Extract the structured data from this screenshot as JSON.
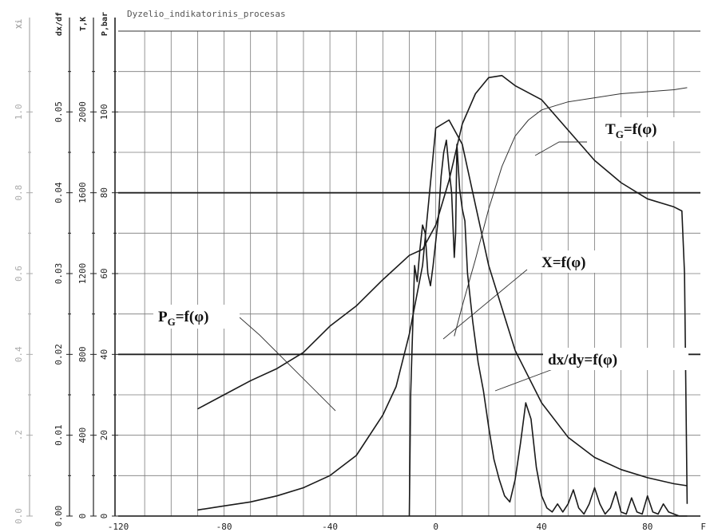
{
  "chart_data": {
    "type": "line",
    "title": "Dyzelio_indikatorinis_procesas",
    "x_axis": {
      "min": -120,
      "max": 100,
      "ticks": [
        -120,
        -80,
        -40,
        0,
        40,
        80
      ],
      "tick_labels": [
        "-120",
        "-80",
        "-40",
        "0",
        "40",
        "80"
      ],
      "end_label": "F"
    },
    "y_axes": [
      {
        "label": "Xi",
        "min": 0,
        "max": 1.2,
        "ticks": [
          0,
          0.2,
          0.4,
          0.6,
          0.8,
          1.0
        ],
        "tick_labels": [
          "0.0",
          ".2",
          "0.4",
          "0.6",
          "0.8",
          "1.0"
        ],
        "faded": true
      },
      {
        "label": "dx/df",
        "min": 0,
        "max": 0.06,
        "ticks": [
          0,
          0.01,
          0.02,
          0.03,
          0.04,
          0.05
        ],
        "tick_labels": [
          "0.00",
          "0.01",
          "0.02",
          "0.03",
          "0.04",
          "0.05"
        ]
      },
      {
        "label": "T,K",
        "min": 0,
        "max": 2400,
        "ticks": [
          0,
          400,
          800,
          1200,
          1600,
          2000
        ],
        "tick_labels": [
          "0",
          "400",
          "800",
          "1200",
          "1600",
          "2000"
        ]
      },
      {
        "label": "P,bar",
        "min": 0,
        "max": 120,
        "ticks": [
          0,
          20,
          40,
          60,
          80,
          100
        ],
        "tick_labels": [
          "0",
          "20",
          "40",
          "60",
          "80",
          "100"
        ]
      }
    ],
    "grid": true,
    "series": [
      {
        "name": "P_G",
        "axis": "P,bar",
        "x": [
          -90,
          -80,
          -70,
          -60,
          -50,
          -40,
          -30,
          -20,
          -15,
          -10,
          -5,
          0,
          5,
          10,
          15,
          20,
          30,
          40,
          50,
          60,
          70,
          80,
          90,
          95
        ],
        "y": [
          1.5,
          2.5,
          3.5,
          5,
          7,
          10,
          15,
          25,
          32,
          45,
          62,
          96,
          98,
          92,
          77,
          62,
          41,
          28,
          19.5,
          14.5,
          11.5,
          9.5,
          8,
          7.5
        ]
      },
      {
        "name": "T_G",
        "axis": "P,bar",
        "x": [
          -90,
          -80,
          -70,
          -60,
          -50,
          -40,
          -30,
          -20,
          -10,
          -5,
          0,
          5,
          10,
          15,
          20,
          25,
          30,
          40,
          50,
          60,
          70,
          80,
          90,
          93,
          94,
          95
        ],
        "y": [
          26.5,
          30,
          33.5,
          36.5,
          40.5,
          47,
          52,
          58.5,
          64.5,
          66,
          72,
          83,
          97,
          104.5,
          108.5,
          109,
          106.5,
          103,
          95.5,
          88,
          82.5,
          78.5,
          76.5,
          75.5,
          60,
          3
        ]
      },
      {
        "name": "X",
        "axis": "P,bar",
        "x": [
          7,
          10,
          15,
          20,
          25,
          30,
          35,
          40,
          45,
          50,
          60,
          70,
          80,
          90,
          95
        ],
        "y": [
          44.5,
          52,
          63.5,
          76,
          86.5,
          94,
          98,
          100.5,
          101.5,
          102.5,
          103.5,
          104.5,
          105,
          105.5,
          106
        ]
      },
      {
        "name": "dx/dy",
        "axis": "P,bar",
        "x": [
          -10,
          -9.5,
          -8,
          -7,
          -6,
          -5,
          -4,
          -3,
          -2,
          -1,
          0,
          1,
          2,
          3,
          4,
          5,
          6,
          7,
          7.5,
          8,
          9,
          10,
          11,
          12,
          14,
          16,
          18,
          20,
          22,
          24,
          26,
          28,
          30,
          32,
          34,
          36,
          38,
          40,
          42,
          44,
          46,
          48,
          50,
          52,
          54,
          56,
          58,
          60,
          62,
          64,
          66,
          68,
          70,
          72,
          74,
          76,
          78,
          80,
          82,
          84,
          86,
          88,
          90,
          92,
          94,
          95
        ],
        "y": [
          0,
          30,
          62,
          58,
          66,
          72,
          70,
          60,
          57,
          62,
          68,
          74,
          84,
          90,
          93,
          86,
          80,
          64,
          70,
          92,
          81,
          76,
          73,
          60,
          48,
          38,
          31,
          22,
          14,
          9,
          5,
          3.5,
          9,
          18,
          28,
          24,
          12,
          5,
          2,
          1,
          3,
          1,
          3,
          6.5,
          2,
          0.5,
          3,
          7,
          3,
          0.5,
          2,
          6,
          1,
          0.5,
          4.5,
          1,
          0.5,
          5,
          1,
          0.5,
          3,
          1,
          0.5,
          0,
          0,
          0
        ]
      }
    ],
    "annotations": [
      {
        "text": "T",
        "sub": "G",
        "suffix": "=f(φ)"
      },
      {
        "text": "X",
        "sub": "",
        "suffix": "=f(φ)"
      },
      {
        "text": "P",
        "sub": "G",
        "suffix": "=f(φ)"
      },
      {
        "text": "dx/dy",
        "sub": "",
        "suffix": "=f(φ)"
      }
    ]
  }
}
